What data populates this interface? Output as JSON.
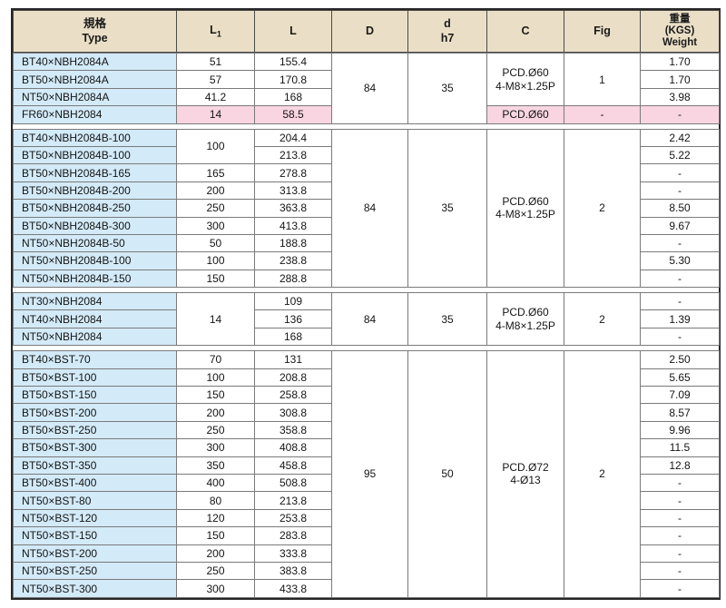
{
  "palette": {
    "header_bg": "#eadfc6",
    "type_col_bg": "#d3eaf8",
    "highlight_bg": "#f8d5e0",
    "grid_line": "#7a7a7a",
    "frame_line": "#262626"
  },
  "header": {
    "type_zh": "規格",
    "type_en": "Type",
    "l1_main": "L",
    "l1_sub": "1",
    "l": "L",
    "d": "D",
    "d_small": "d",
    "d_tol": "h7",
    "c": "C",
    "fig": "Fig",
    "w_zh": "重量",
    "w_kgs": "(KGS)",
    "w_en": "Weight"
  },
  "groups": [
    {
      "d": "84",
      "dh7": "35",
      "c": "PCD.Ø60\n4-M8×1.25P",
      "fig": "1",
      "cf_span": 3,
      "rows": [
        {
          "type": "BT40×NBH2084A",
          "l1": "51",
          "l": "155.4",
          "w": "1.70"
        },
        {
          "type": "BT50×NBH2084A",
          "l1": "57",
          "l": "170.8",
          "w": "1.70"
        },
        {
          "type": "NT50×NBH2084A",
          "l1": "41.2",
          "l": "168",
          "w": "3.98"
        },
        {
          "type": "FR60×NBH2084",
          "l1": "14",
          "l": "58.5",
          "c": "PCD.Ø60",
          "fig": "-",
          "w": "-",
          "pink": true
        }
      ]
    },
    {
      "d": "84",
      "dh7": "35",
      "c": "PCD.Ø60\n4-M8×1.25P",
      "fig": "2",
      "rows": [
        {
          "type": "BT40×NBH2084B-100",
          "l1": "100",
          "l1_span": 2,
          "l": "204.4",
          "w": "2.42"
        },
        {
          "type": "BT50×NBH2084B-100",
          "l": "213.8",
          "w": "5.22"
        },
        {
          "type": "BT50×NBH2084B-165",
          "l1": "165",
          "l": "278.8",
          "w": "-"
        },
        {
          "type": "BT50×NBH2084B-200",
          "l1": "200",
          "l": "313.8",
          "w": "-"
        },
        {
          "type": "BT50×NBH2084B-250",
          "l1": "250",
          "l": "363.8",
          "w": "8.50"
        },
        {
          "type": "BT50×NBH2084B-300",
          "l1": "300",
          "l": "413.8",
          "w": "9.67"
        },
        {
          "type": "NT50×NBH2084B-50",
          "l1": "50",
          "l": "188.8",
          "w": "-"
        },
        {
          "type": "NT50×NBH2084B-100",
          "l1": "100",
          "l": "238.8",
          "w": "5.30"
        },
        {
          "type": "NT50×NBH2084B-150",
          "l1": "150",
          "l": "288.8",
          "w": "-"
        }
      ]
    },
    {
      "d": "84",
      "dh7": "35",
      "c": "PCD.Ø60\n4-M8×1.25P",
      "fig": "2",
      "rows": [
        {
          "type": "NT30×NBH2084",
          "l1": "14",
          "l1_span": 3,
          "l": "109",
          "w": "-"
        },
        {
          "type": "NT40×NBH2084",
          "l": "136",
          "w": "1.39"
        },
        {
          "type": "NT50×NBH2084",
          "l": "168",
          "w": "-"
        }
      ]
    },
    {
      "d": "95",
      "dh7": "50",
      "c": "PCD.Ø72\n4-Ø13",
      "fig": "2",
      "rows": [
        {
          "type": "BT40×BST-70",
          "l1": "70",
          "l": "131",
          "w": "2.50"
        },
        {
          "type": "BT50×BST-100",
          "l1": "100",
          "l": "208.8",
          "w": "5.65"
        },
        {
          "type": "BT50×BST-150",
          "l1": "150",
          "l": "258.8",
          "w": "7.09"
        },
        {
          "type": "BT50×BST-200",
          "l1": "200",
          "l": "308.8",
          "w": "8.57"
        },
        {
          "type": "BT50×BST-250",
          "l1": "250",
          "l": "358.8",
          "w": "9.96"
        },
        {
          "type": "BT50×BST-300",
          "l1": "300",
          "l": "408.8",
          "w": "11.5"
        },
        {
          "type": "BT50×BST-350",
          "l1": "350",
          "l": "458.8",
          "w": "12.8"
        },
        {
          "type": "BT50×BST-400",
          "l1": "400",
          "l": "508.8",
          "w": "-"
        },
        {
          "type": "NT50×BST-80",
          "l1": "80",
          "l": "213.8",
          "w": "-"
        },
        {
          "type": "NT50×BST-120",
          "l1": "120",
          "l": "253.8",
          "w": "-"
        },
        {
          "type": "NT50×BST-150",
          "l1": "150",
          "l": "283.8",
          "w": "-"
        },
        {
          "type": "NT50×BST-200",
          "l1": "200",
          "l": "333.8",
          "w": "-"
        },
        {
          "type": "NT50×BST-250",
          "l1": "250",
          "l": "383.8",
          "w": "-"
        },
        {
          "type": "NT50×BST-300",
          "l1": "300",
          "l": "433.8",
          "w": "-"
        }
      ]
    }
  ]
}
